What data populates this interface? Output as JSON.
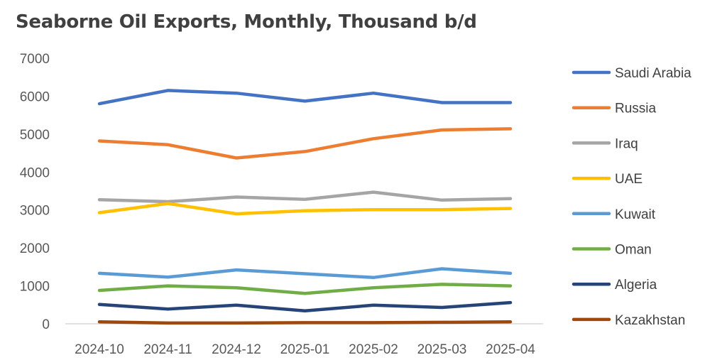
{
  "chart_data": {
    "type": "line",
    "title": "Seaborne Oil Exports, Monthly, Thousand b/d",
    "xlabel": "",
    "ylabel": "",
    "categories": [
      "2024-10",
      "2024-11",
      "2024-12",
      "2025-01",
      "2025-02",
      "2025-03",
      "2025-04"
    ],
    "ylim": [
      0,
      7000
    ],
    "yticks": [
      0,
      1000,
      2000,
      3000,
      4000,
      5000,
      6000,
      7000
    ],
    "grid": false,
    "legend_position": "right",
    "series": [
      {
        "name": "Saudi Arabia",
        "color": "#4472C4",
        "values": [
          5800,
          6150,
          6080,
          5870,
          6080,
          5830,
          5830
        ]
      },
      {
        "name": "Russia",
        "color": "#ED7D31",
        "values": [
          4820,
          4720,
          4370,
          4540,
          4880,
          5110,
          5140
        ]
      },
      {
        "name": "Iraq",
        "color": "#A5A5A5",
        "values": [
          3270,
          3220,
          3340,
          3280,
          3470,
          3260,
          3300
        ]
      },
      {
        "name": "UAE",
        "color": "#FFC000",
        "values": [
          2930,
          3170,
          2900,
          2980,
          3010,
          3010,
          3040
        ]
      },
      {
        "name": "Kuwait",
        "color": "#5B9BD5",
        "values": [
          1330,
          1230,
          1420,
          1320,
          1220,
          1450,
          1330
        ]
      },
      {
        "name": "Oman",
        "color": "#70AD47",
        "values": [
          880,
          1000,
          950,
          800,
          950,
          1040,
          1000
        ]
      },
      {
        "name": "Algeria",
        "color": "#264478",
        "values": [
          510,
          390,
          490,
          340,
          490,
          430,
          560
        ]
      },
      {
        "name": "Kazakhstan",
        "color": "#9E480E",
        "values": [
          50,
          20,
          20,
          30,
          30,
          40,
          50
        ]
      }
    ]
  }
}
